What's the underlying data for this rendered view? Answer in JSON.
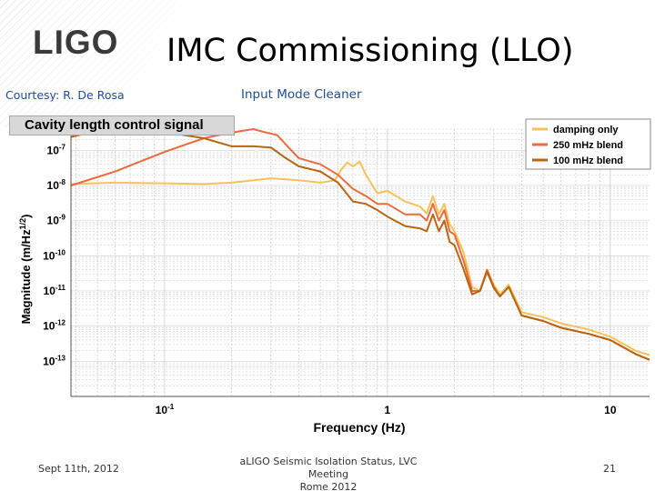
{
  "slide": {
    "logo": "LIGO",
    "title": "IMC Commissioning (LLO)",
    "courtesy": "Courtesy: R.  De Rosa",
    "subtitle": "Input Mode Cleaner",
    "chart_header": "Cavity length control signal",
    "footer_left": "Sept 11th, 2012",
    "footer_center_line1": "aLIGO Seismic Isolation Status, LVC Meeting",
    "footer_center_line2": "Rome 2012",
    "page_number": "21"
  },
  "colors": {
    "damping_only": "#f6c25a",
    "blend_250": "#ec6a3c",
    "blend_100": "#b8650e",
    "title_blue": "#1f4e96"
  },
  "chart_data": {
    "type": "line",
    "title": "Cavity length control signal",
    "xlabel": "Frequency (Hz)",
    "ylabel": "Magnitude (m/Hz^1/2)",
    "x_scale": "log",
    "y_scale": "log",
    "xlim": [
      0.038,
      15
    ],
    "ylim": [
      1e-14,
      4e-07
    ],
    "x_ticks": [
      {
        "value": 0.1,
        "label": "10-1"
      },
      {
        "value": 1,
        "label": "1"
      },
      {
        "value": 10,
        "label": "10"
      }
    ],
    "y_ticks": [
      {
        "value": 1e-07,
        "label": "10-7"
      },
      {
        "value": 1e-08,
        "label": "10-8"
      },
      {
        "value": 1e-09,
        "label": "10-9"
      },
      {
        "value": 1e-10,
        "label": "10-10"
      },
      {
        "value": 1e-11,
        "label": "10-11"
      },
      {
        "value": 1e-12,
        "label": "10-12"
      },
      {
        "value": 1e-13,
        "label": "10-13"
      }
    ],
    "grid": true,
    "legend_position": "top-right",
    "series": [
      {
        "name": "damping only",
        "x": [
          0.038,
          0.06,
          0.1,
          0.15,
          0.2,
          0.3,
          0.4,
          0.5,
          0.58,
          0.62,
          0.66,
          0.7,
          0.75,
          0.8,
          0.9,
          1.0,
          1.2,
          1.4,
          1.5,
          1.6,
          1.7,
          1.8,
          1.9,
          2.0,
          2.2,
          2.4,
          2.6,
          2.8,
          3.0,
          3.2,
          3.5,
          4.0,
          5.0,
          6.0,
          8.0,
          10.0,
          13.0,
          15.0
        ],
        "y": [
          1.1e-08,
          1.2e-08,
          1.15e-08,
          1.1e-08,
          1.2e-08,
          1.6e-08,
          1.4e-08,
          1.2e-08,
          1.4e-08,
          2.8e-08,
          4.5e-08,
          3.5e-08,
          4.8e-08,
          2e-08,
          6e-09,
          7e-09,
          3.5e-09,
          2.5e-09,
          1.6e-09,
          5e-09,
          1.5e-09,
          3e-09,
          8e-10,
          5e-10,
          1.2e-10,
          1.3e-11,
          1e-11,
          4e-11,
          1.5e-11,
          8e-12,
          1.5e-11,
          2.5e-12,
          1.8e-12,
          1.2e-12,
          8e-13,
          5e-13,
          2e-13,
          1.5e-13
        ]
      },
      {
        "name": "250 mHz blend",
        "x": [
          0.038,
          0.06,
          0.1,
          0.15,
          0.2,
          0.25,
          0.28,
          0.32,
          0.36,
          0.4,
          0.5,
          0.6,
          0.7,
          0.8,
          0.9,
          1.0,
          1.2,
          1.4,
          1.5,
          1.6,
          1.7,
          1.8,
          1.9,
          2.0,
          2.2,
          2.4,
          2.6,
          2.8,
          3.0,
          3.2,
          3.5,
          4.0,
          5.0,
          6.0,
          8.0,
          10.0,
          13.0,
          15.0
        ],
        "y": [
          1e-08,
          2.5e-08,
          9e-08,
          2.2e-07,
          3.2e-07,
          4e-07,
          3.3e-07,
          2.7e-07,
          1.2e-07,
          6e-08,
          4e-08,
          2e-08,
          8e-09,
          5e-09,
          3e-09,
          3e-09,
          1.5e-09,
          1.5e-09,
          1e-09,
          3e-09,
          1e-09,
          2e-09,
          5e-10,
          4e-10,
          7e-11,
          1e-11,
          1e-11,
          4e-11,
          1.3e-11,
          7e-12,
          1.3e-11,
          2e-12,
          1.4e-12,
          9e-13,
          6e-13,
          4e-13,
          1.6e-13,
          1.1e-13
        ]
      },
      {
        "name": "100 mHz blend",
        "x": [
          0.038,
          0.05,
          0.065,
          0.08,
          0.1,
          0.15,
          0.2,
          0.25,
          0.3,
          0.35,
          0.4,
          0.5,
          0.6,
          0.7,
          0.8,
          0.9,
          1.0,
          1.2,
          1.4,
          1.5,
          1.6,
          1.7,
          1.8,
          1.9,
          2.0,
          2.2,
          2.4,
          2.6,
          2.8,
          3.0,
          3.2,
          3.5,
          4.0,
          5.0,
          6.0,
          8.0,
          10.0,
          13.0,
          15.0
        ],
        "y": [
          2.4e-07,
          3.6e-07,
          3.8e-07,
          3.8e-07,
          3.3e-07,
          2.2e-07,
          1.3e-07,
          1.3e-07,
          1.2e-07,
          6e-08,
          3.5e-08,
          2.5e-08,
          1.2e-08,
          3.5e-09,
          3e-09,
          2e-09,
          1.3e-09,
          7e-10,
          6e-10,
          5e-10,
          1.5e-09,
          5e-10,
          1e-09,
          2.5e-10,
          2e-10,
          4e-11,
          8e-12,
          1e-11,
          3.5e-11,
          1.2e-11,
          7e-12,
          1.3e-11,
          2e-12,
          1.4e-12,
          9e-13,
          6e-13,
          4e-13,
          1.6e-13,
          1.1e-13
        ]
      }
    ]
  }
}
